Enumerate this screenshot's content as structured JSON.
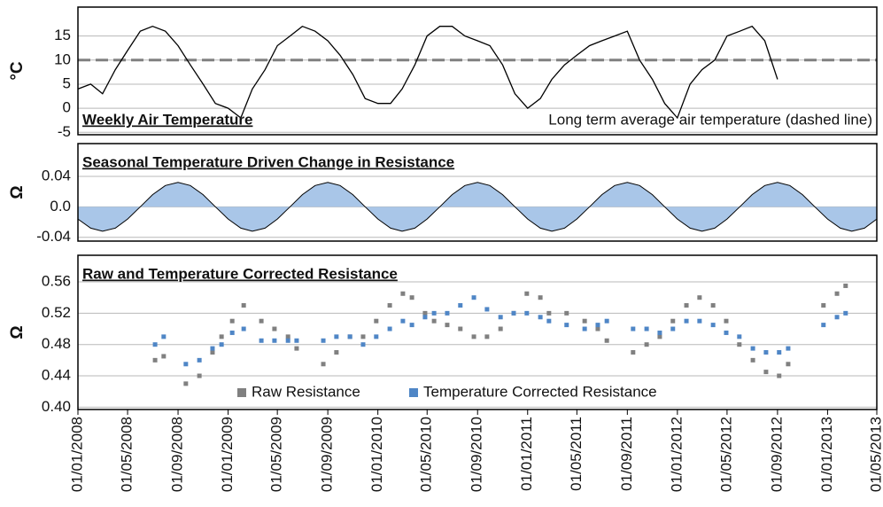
{
  "chart_data": [
    {
      "type": "line",
      "title": "Weekly Air Temperature",
      "ylabel": "°C",
      "annotation": "Long term average air temperature (dashed line)",
      "xlim": [
        "2008-01-01",
        "2013-05-01"
      ],
      "ylim": [
        -5.5,
        21
      ],
      "yticks": [
        -5,
        0,
        5,
        10,
        15
      ],
      "grid": true,
      "reference_line": 10,
      "color": "#000000",
      "reference_color": "#808080",
      "x": [
        "2008-01-01",
        "2008-02-01",
        "2008-03-01",
        "2008-04-01",
        "2008-05-01",
        "2008-06-01",
        "2008-07-01",
        "2008-08-01",
        "2008-09-01",
        "2008-10-01",
        "2008-11-01",
        "2008-12-01",
        "2009-01-01",
        "2009-02-01",
        "2009-03-01",
        "2009-04-01",
        "2009-05-01",
        "2009-06-01",
        "2009-07-01",
        "2009-08-01",
        "2009-09-01",
        "2009-10-01",
        "2009-11-01",
        "2009-12-01",
        "2010-01-01",
        "2010-02-01",
        "2010-03-01",
        "2010-04-01",
        "2010-05-01",
        "2010-06-01",
        "2010-07-01",
        "2010-08-01",
        "2010-09-01",
        "2010-10-01",
        "2010-11-01",
        "2010-12-01",
        "2011-01-01",
        "2011-02-01",
        "2011-03-01",
        "2011-04-01",
        "2011-05-01",
        "2011-06-01",
        "2011-07-01",
        "2011-08-01",
        "2011-09-01",
        "2011-10-01",
        "2011-11-01",
        "2011-12-01",
        "2012-01-01",
        "2012-02-01",
        "2012-03-01",
        "2012-04-01",
        "2012-05-01",
        "2012-06-01",
        "2012-07-01",
        "2012-08-01",
        "2012-09-01"
      ],
      "values": [
        4,
        5,
        3,
        8,
        12,
        16,
        17,
        16,
        13,
        9,
        5,
        1,
        0,
        -2,
        4,
        8,
        13,
        15,
        17,
        16,
        14,
        11,
        7,
        2,
        1,
        1,
        4,
        9,
        15,
        17,
        17,
        15,
        14,
        13,
        9,
        3,
        0,
        2,
        6,
        9,
        11,
        13,
        14,
        15,
        16,
        10,
        6,
        1,
        -2,
        5,
        8,
        10,
        15,
        16,
        17,
        14,
        6
      ]
    },
    {
      "type": "area",
      "title": "Seasonal Temperature Driven Change in Resistance",
      "ylabel": "Ω",
      "xlim": [
        "2008-01-01",
        "2013-05-01"
      ],
      "ylim": [
        -0.045,
        0.083
      ],
      "yticks": [
        -0.04,
        {
          "value": 0,
          "label": "0.0"
        },
        0.04
      ],
      "grid": true,
      "color": "#a9c6e8",
      "line_color": "#000000",
      "x": [
        "2008-01-01",
        "2008-02-01",
        "2008-03-01",
        "2008-04-01",
        "2008-05-01",
        "2008-06-01",
        "2008-07-01",
        "2008-08-01",
        "2008-09-01",
        "2008-10-01",
        "2008-11-01",
        "2008-12-01",
        "2009-01-01",
        "2009-02-01",
        "2009-03-01",
        "2009-04-01",
        "2009-05-01",
        "2009-06-01",
        "2009-07-01",
        "2009-08-01",
        "2009-09-01",
        "2009-10-01",
        "2009-11-01",
        "2009-12-01",
        "2010-01-01",
        "2010-02-01",
        "2010-03-01",
        "2010-04-01",
        "2010-05-01",
        "2010-06-01",
        "2010-07-01",
        "2010-08-01",
        "2010-09-01",
        "2010-10-01",
        "2010-11-01",
        "2010-12-01",
        "2011-01-01",
        "2011-02-01",
        "2011-03-01",
        "2011-04-01",
        "2011-05-01",
        "2011-06-01",
        "2011-07-01",
        "2011-08-01",
        "2011-09-01",
        "2011-10-01",
        "2011-11-01",
        "2011-12-01",
        "2012-01-01",
        "2012-02-01",
        "2012-03-01",
        "2012-04-01",
        "2012-05-01",
        "2012-06-01",
        "2012-07-01",
        "2012-08-01",
        "2012-09-01",
        "2012-10-01",
        "2012-11-01",
        "2012-12-01",
        "2013-01-01",
        "2013-02-01",
        "2013-03-01",
        "2013-04-01",
        "2013-05-01"
      ],
      "values": [
        -0.016,
        -0.028,
        -0.032,
        -0.028,
        -0.016,
        0,
        0.016,
        0.028,
        0.032,
        0.028,
        0.016,
        0,
        -0.016,
        -0.028,
        -0.032,
        -0.028,
        -0.016,
        0,
        0.016,
        0.028,
        0.032,
        0.028,
        0.016,
        0,
        -0.016,
        -0.028,
        -0.032,
        -0.028,
        -0.016,
        0,
        0.016,
        0.028,
        0.032,
        0.028,
        0.016,
        0,
        -0.016,
        -0.028,
        -0.032,
        -0.028,
        -0.016,
        0,
        0.016,
        0.028,
        0.032,
        0.028,
        0.016,
        0,
        -0.016,
        -0.028,
        -0.032,
        -0.028,
        -0.016,
        0,
        0.016,
        0.028,
        0.032,
        0.028,
        0.016,
        0,
        -0.016,
        -0.028,
        -0.032,
        -0.028,
        -0.016
      ]
    },
    {
      "type": "scatter",
      "title": "Raw and Temperature Corrected Resistance",
      "ylabel": "Ω",
      "xlim": [
        "2008-01-01",
        "2013-05-01"
      ],
      "ylim": [
        0.397,
        0.594
      ],
      "yticks": [
        {
          "value": 0.4,
          "label": "0.40"
        },
        0.44,
        0.48,
        0.52,
        0.56
      ],
      "grid": true,
      "legend": "bottom",
      "xticks": [
        {
          "value": "2008-01-01",
          "label": "01/01/2008"
        },
        {
          "value": "2008-05-01",
          "label": "01/05/2008"
        },
        {
          "value": "2008-09-01",
          "label": "01/09/2008"
        },
        {
          "value": "2009-01-01",
          "label": "01/01/2009"
        },
        {
          "value": "2009-05-01",
          "label": "01/05/2009"
        },
        {
          "value": "2009-09-01",
          "label": "01/09/2009"
        },
        {
          "value": "2010-01-01",
          "label": "01/01/2010"
        },
        {
          "value": "2010-05-01",
          "label": "01/05/2010"
        },
        {
          "value": "2010-09-01",
          "label": "01/09/2010"
        },
        {
          "value": "2011-01-01",
          "label": "01/01/2011"
        },
        {
          "value": "2011-05-01",
          "label": "01/05/2011"
        },
        {
          "value": "2011-09-01",
          "label": "01/09/2011"
        },
        {
          "value": "2012-01-01",
          "label": "01/01/2012"
        },
        {
          "value": "2012-05-01",
          "label": "01/05/2012"
        },
        {
          "value": "2012-09-01",
          "label": "01/09/2012"
        },
        {
          "value": "2013-01-01",
          "label": "01/01/2013"
        },
        {
          "value": "2013-05-01",
          "label": "01/05/2013"
        }
      ],
      "x": [
        "2008-07-07",
        "2008-07-28",
        "2008-09-20",
        "2008-10-23",
        "2008-11-24",
        "2008-12-16",
        "2009-01-11",
        "2009-02-08",
        "2009-03-23",
        "2009-04-24",
        "2009-05-27",
        "2009-06-17",
        "2009-08-21",
        "2009-09-22",
        "2009-10-25",
        "2009-11-26",
        "2009-12-28",
        "2010-01-30",
        "2010-03-03",
        "2010-03-25",
        "2010-04-26",
        "2010-05-18",
        "2010-06-19",
        "2010-07-21",
        "2010-08-23",
        "2010-09-24",
        "2010-10-27",
        "2010-11-28",
        "2010-12-30",
        "2011-02-01",
        "2011-02-22",
        "2011-04-06",
        "2011-05-20",
        "2011-06-21",
        "2011-07-13",
        "2011-09-15",
        "2011-10-18",
        "2011-11-19",
        "2011-12-21",
        "2012-01-23",
        "2012-02-24",
        "2012-03-28",
        "2012-04-29",
        "2012-05-31",
        "2012-07-03",
        "2012-08-04",
        "2012-09-05",
        "2012-09-27",
        "2012-12-22",
        "2013-01-24",
        "2013-02-14"
      ],
      "series": [
        {
          "name": "Raw Resistance",
          "color": "#808080",
          "values": [
            0.46,
            0.465,
            0.43,
            0.44,
            0.47,
            0.49,
            0.51,
            0.53,
            0.51,
            0.5,
            0.49,
            0.475,
            0.455,
            0.47,
            0.49,
            0.49,
            0.51,
            0.53,
            0.545,
            0.54,
            0.52,
            0.51,
            0.505,
            0.5,
            0.49,
            0.49,
            0.5,
            0.52,
            0.545,
            0.54,
            0.52,
            0.52,
            0.51,
            0.5,
            0.485,
            0.47,
            0.48,
            0.49,
            0.51,
            0.53,
            0.54,
            0.53,
            0.51,
            0.48,
            0.46,
            0.445,
            0.44,
            0.455,
            0.53,
            0.545,
            0.555
          ]
        },
        {
          "name": "Temperature Corrected Resistance",
          "color": "#4f86c6",
          "values": [
            0.48,
            0.49,
            0.455,
            0.46,
            0.475,
            0.48,
            0.495,
            0.5,
            0.485,
            0.485,
            0.485,
            0.485,
            0.485,
            0.49,
            0.49,
            0.48,
            0.49,
            0.5,
            0.51,
            0.505,
            0.515,
            0.52,
            0.52,
            0.53,
            0.54,
            0.525,
            0.515,
            0.52,
            0.52,
            0.515,
            0.51,
            0.505,
            0.5,
            0.505,
            0.51,
            0.5,
            0.5,
            0.495,
            0.5,
            0.51,
            0.51,
            0.505,
            0.495,
            0.49,
            0.475,
            0.47,
            0.47,
            0.475,
            0.505,
            0.515,
            0.52
          ]
        }
      ]
    }
  ]
}
